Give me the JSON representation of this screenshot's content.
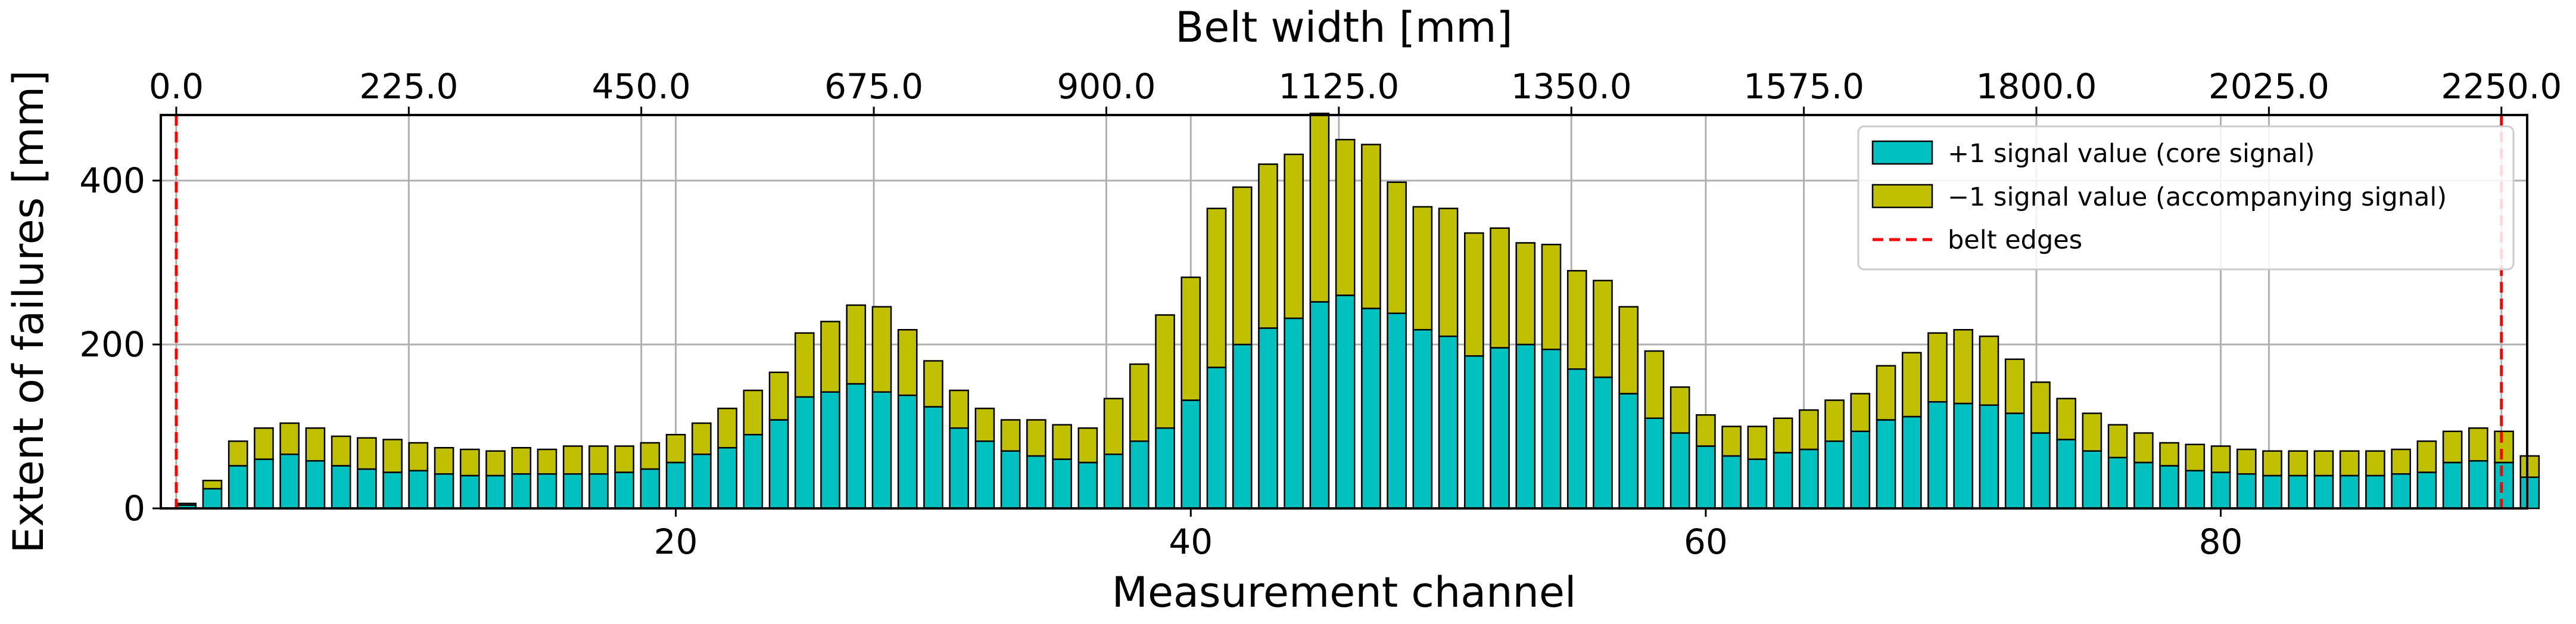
{
  "chart_data": {
    "type": "bar",
    "stacked": true,
    "xlabel": "Measurement channel",
    "x2label": "Belt width [mm]",
    "ylabel": "Extent of failures [mm]",
    "xlim": [
      0.0,
      91.9
    ],
    "ylim": [
      0,
      480
    ],
    "x_ticks": [
      "20",
      "40",
      "60",
      "80"
    ],
    "x_tick_values": [
      20,
      40,
      60,
      80
    ],
    "x2_ticks": [
      "0.0",
      "225.0",
      "450.0",
      "675.0",
      "900.0",
      "1125.0",
      "1350.0",
      "1575.0",
      "1800.0",
      "2025.0",
      "2250.0"
    ],
    "x2_tick_values_mm": [
      0,
      225,
      450,
      675,
      900,
      1125,
      1350,
      1575,
      1800,
      2025,
      2250
    ],
    "x2_channel_at_0mm": 0.6,
    "x2_channel_at_2250mm": 90.9,
    "y_ticks": [
      "0",
      "200",
      "400"
    ],
    "y_tick_values": [
      0,
      200,
      400
    ],
    "grid": true,
    "legend_position": "top-right",
    "colors": {
      "core": "#00C0C0",
      "accompanying": "#C0C000",
      "edges": "#FF0000",
      "bar_edge": "#000000"
    },
    "x": [
      0,
      1,
      2,
      3,
      4,
      5,
      6,
      7,
      8,
      9,
      10,
      11,
      12,
      13,
      14,
      15,
      16,
      17,
      18,
      19,
      20,
      21,
      22,
      23,
      24,
      25,
      26,
      27,
      28,
      29,
      30,
      31,
      32,
      33,
      34,
      35,
      36,
      37,
      38,
      39,
      40,
      41,
      42,
      43,
      44,
      45,
      46,
      47,
      48,
      49,
      50,
      51,
      52,
      53,
      54,
      55,
      56,
      57,
      58,
      59,
      60,
      61,
      62,
      63,
      64,
      65,
      66,
      67,
      68,
      69,
      70,
      71,
      72,
      73,
      74,
      75,
      76,
      77,
      78,
      79,
      80,
      81,
      82,
      83,
      84,
      85,
      86,
      87,
      88,
      89,
      90,
      91
    ],
    "series": [
      {
        "name": "+1 signal value (core signal)",
        "values": [
          4,
          24,
          52,
          60,
          66,
          58,
          52,
          48,
          44,
          46,
          42,
          40,
          40,
          42,
          42,
          42,
          42,
          44,
          48,
          56,
          66,
          74,
          90,
          108,
          136,
          142,
          152,
          142,
          138,
          124,
          98,
          82,
          70,
          64,
          60,
          56,
          66,
          82,
          98,
          132,
          172,
          200,
          220,
          232,
          252,
          260,
          244,
          238,
          218,
          210,
          186,
          196,
          200,
          194,
          170,
          160,
          140,
          110,
          92,
          76,
          64,
          60,
          68,
          72,
          82,
          94,
          108,
          112,
          130,
          128,
          126,
          116,
          92,
          84,
          70,
          62,
          56,
          52,
          46,
          44,
          42,
          40,
          40,
          40,
          40,
          40,
          42,
          44,
          56,
          58,
          56,
          38
        ]
      },
      {
        "name": "−1 signal value (accompanying signal)",
        "values": [
          2,
          10,
          30,
          38,
          38,
          40,
          36,
          38,
          40,
          34,
          32,
          32,
          30,
          32,
          30,
          34,
          34,
          32,
          32,
          34,
          38,
          48,
          54,
          58,
          78,
          86,
          96,
          104,
          80,
          56,
          46,
          40,
          38,
          44,
          42,
          42,
          68,
          94,
          138,
          150,
          194,
          192,
          200,
          200,
          230,
          190,
          200,
          160,
          150,
          156,
          150,
          146,
          124,
          128,
          120,
          118,
          106,
          82,
          56,
          38,
          36,
          40,
          42,
          48,
          50,
          46,
          66,
          78,
          84,
          90,
          84,
          66,
          62,
          50,
          46,
          40,
          36,
          28,
          32,
          32,
          30,
          30,
          30,
          30,
          30,
          30,
          30,
          38,
          38,
          40,
          38,
          26
        ]
      },
      {
        "name": "belt edges",
        "channel_positions": [
          0.6,
          90.9
        ]
      }
    ]
  }
}
